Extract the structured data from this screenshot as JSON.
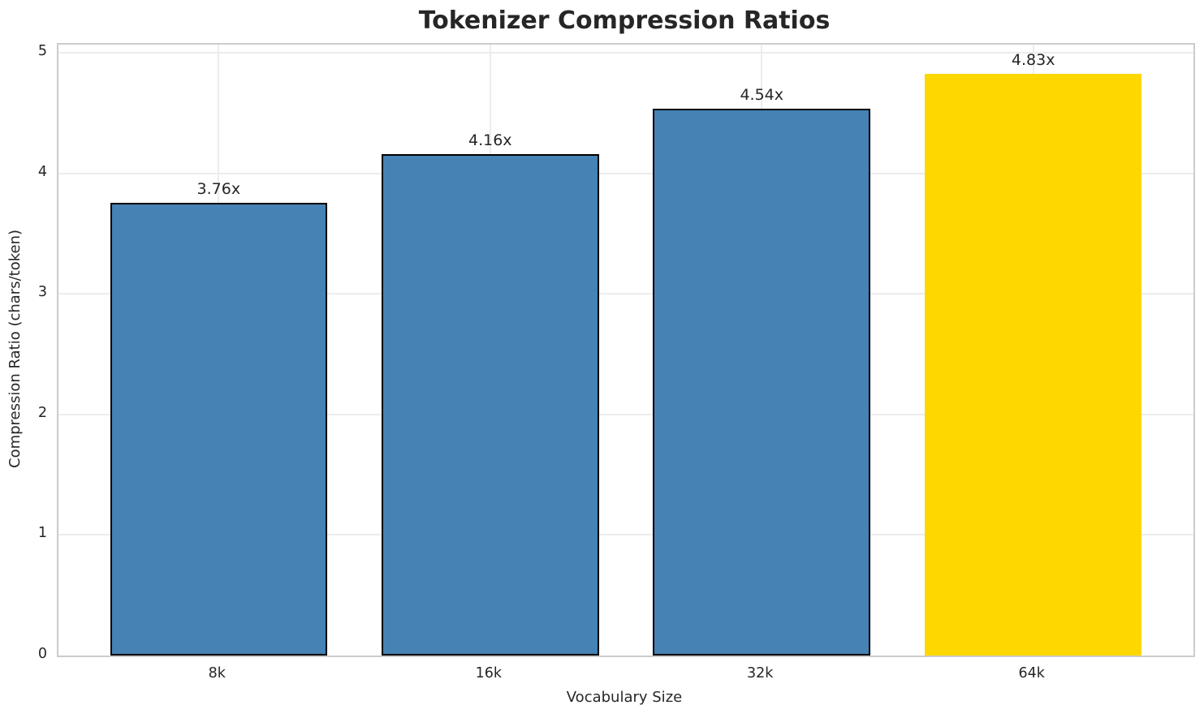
{
  "chart_data": {
    "type": "bar",
    "title": "Tokenizer Compression Ratios",
    "xlabel": "Vocabulary Size",
    "ylabel": "Compression Ratio (chars/token)",
    "categories": [
      "8k",
      "16k",
      "32k",
      "64k"
    ],
    "values": [
      3.76,
      4.16,
      4.54,
      4.83
    ],
    "bar_labels": [
      "3.76x",
      "4.16x",
      "4.54x",
      "4.83x"
    ],
    "yticks": [
      0,
      1,
      2,
      3,
      4,
      5
    ],
    "ylim": [
      0,
      5.07
    ],
    "grid": true,
    "legend": "none",
    "bar_colors": [
      "#4682B4",
      "#4682B4",
      "#4682B4",
      "#FFD700"
    ],
    "bar_edge_colors": [
      "#000000",
      "#000000",
      "#000000",
      "none"
    ],
    "highlight_index": 3,
    "colors": {
      "grid": "#ececec",
      "spine": "#cccccc",
      "text": "#262626",
      "bar_blue": "#4682B4",
      "bar_gold": "#FFD700"
    }
  }
}
